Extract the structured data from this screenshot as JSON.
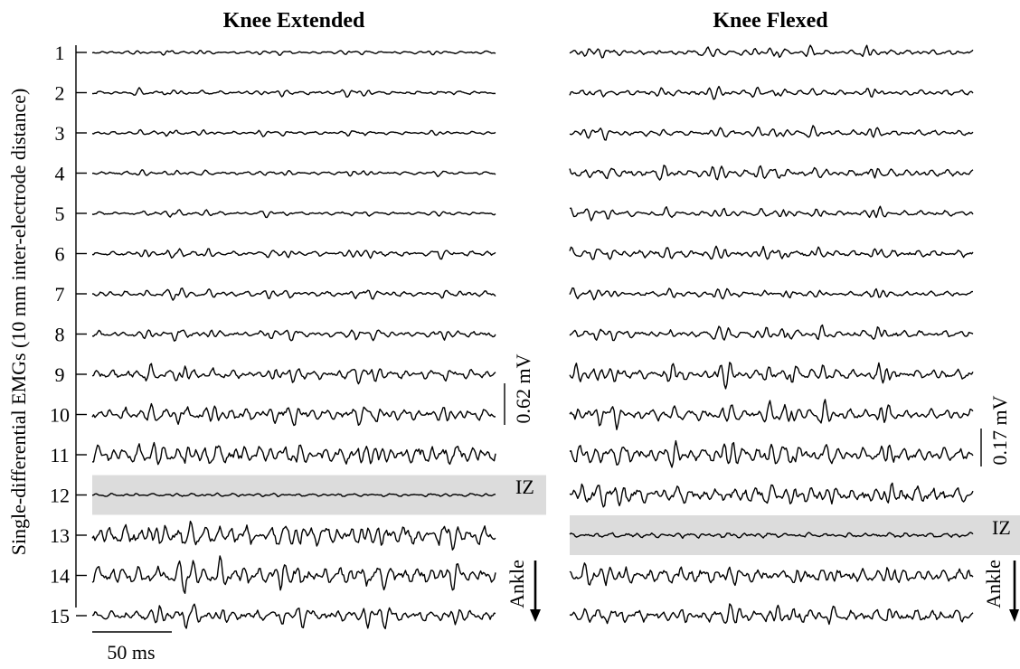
{
  "chart_data": [
    {
      "type": "line",
      "title": "Knee Extended",
      "ylabel": "Single-differential EMGs (10 mm inter-electrode distance)",
      "channels": [
        "1",
        "2",
        "3",
        "4",
        "5",
        "6",
        "7",
        "8",
        "9",
        "10",
        "11",
        "12",
        "13",
        "14",
        "15"
      ],
      "innervation_zone_channel": "12",
      "iz_label": "IZ",
      "amplitude_scale_label": "0.62 mV",
      "time_scale_label": "50 ms",
      "direction_label": "Ankle",
      "channel_amplitude_mV": [
        0.05,
        0.07,
        0.06,
        0.06,
        0.06,
        0.09,
        0.1,
        0.11,
        0.17,
        0.22,
        0.35,
        0.06,
        0.36,
        0.33,
        0.2
      ],
      "duration_ms": 250
    },
    {
      "type": "line",
      "title": "Knee Flexed",
      "channels": [
        "1",
        "2",
        "3",
        "4",
        "5",
        "6",
        "7",
        "8",
        "9",
        "10",
        "11",
        "12",
        "13",
        "14",
        "15"
      ],
      "innervation_zone_channel": "13",
      "iz_label": "IZ",
      "amplitude_scale_label": "0.17 mV",
      "direction_label": "Ankle",
      "channel_amplitude_mV": [
        0.03,
        0.03,
        0.03,
        0.04,
        0.03,
        0.04,
        0.03,
        0.04,
        0.06,
        0.06,
        0.08,
        0.09,
        0.03,
        0.08,
        0.07
      ],
      "duration_ms": 250
    }
  ]
}
